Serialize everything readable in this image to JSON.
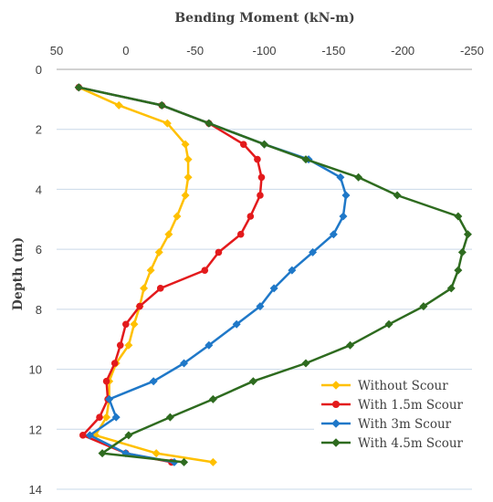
{
  "chart_data": {
    "type": "line",
    "xlabel": "Bending Moment (kN-m)",
    "ylabel": "Depth (m)",
    "xlim": [
      50,
      -250
    ],
    "ylim": [
      0,
      14
    ],
    "x_axis_position": "top",
    "x_ticks": [
      50,
      0,
      -50,
      -100,
      -150,
      -200,
      -250
    ],
    "y_ticks": [
      0,
      2,
      4,
      6,
      8,
      10,
      12,
      14
    ],
    "grid": "horizontal",
    "legend_position": "bottom-right",
    "series": [
      {
        "name": "Without Scour",
        "color": "#FFC000",
        "marker": "diamond",
        "points": [
          {
            "x": 34,
            "y": 0.6
          },
          {
            "x": 5,
            "y": 1.2
          },
          {
            "x": -30,
            "y": 1.8
          },
          {
            "x": -43,
            "y": 2.5
          },
          {
            "x": -45,
            "y": 3.0
          },
          {
            "x": -45,
            "y": 3.6
          },
          {
            "x": -43,
            "y": 4.2
          },
          {
            "x": -37,
            "y": 4.9
          },
          {
            "x": -31,
            "y": 5.5
          },
          {
            "x": -24,
            "y": 6.1
          },
          {
            "x": -18,
            "y": 6.7
          },
          {
            "x": -13,
            "y": 7.3
          },
          {
            "x": -10,
            "y": 7.9
          },
          {
            "x": -6,
            "y": 8.5
          },
          {
            "x": -2,
            "y": 9.2
          },
          {
            "x": 7,
            "y": 9.8
          },
          {
            "x": 12,
            "y": 10.4
          },
          {
            "x": 12,
            "y": 11.0
          },
          {
            "x": 14,
            "y": 11.6
          },
          {
            "x": 22,
            "y": 12.2
          },
          {
            "x": -22,
            "y": 12.8
          },
          {
            "x": -63,
            "y": 13.1
          }
        ]
      },
      {
        "name": "With 1.5m Scour",
        "color": "#E31A1C",
        "marker": "circle",
        "points": [
          {
            "x": 34,
            "y": 0.6
          },
          {
            "x": -26,
            "y": 1.2
          },
          {
            "x": -60,
            "y": 1.8
          },
          {
            "x": -85,
            "y": 2.5
          },
          {
            "x": -95,
            "y": 3.0
          },
          {
            "x": -98,
            "y": 3.6
          },
          {
            "x": -97,
            "y": 4.2
          },
          {
            "x": -90,
            "y": 4.9
          },
          {
            "x": -83,
            "y": 5.5
          },
          {
            "x": -67,
            "y": 6.1
          },
          {
            "x": -57,
            "y": 6.7
          },
          {
            "x": -25,
            "y": 7.3
          },
          {
            "x": -10,
            "y": 7.9
          },
          {
            "x": 0,
            "y": 8.5
          },
          {
            "x": 4,
            "y": 9.2
          },
          {
            "x": 8,
            "y": 9.8
          },
          {
            "x": 14,
            "y": 10.4
          },
          {
            "x": 13,
            "y": 11.0
          },
          {
            "x": 19,
            "y": 11.6
          },
          {
            "x": 31,
            "y": 12.2
          },
          {
            "x": 0,
            "y": 12.8
          },
          {
            "x": -33,
            "y": 13.1
          }
        ]
      },
      {
        "name": "With 3m Scour",
        "color": "#1F78C8",
        "marker": "diamond",
        "points": [
          {
            "x": 34,
            "y": 0.6
          },
          {
            "x": -26,
            "y": 1.2
          },
          {
            "x": -60,
            "y": 1.8
          },
          {
            "x": -100,
            "y": 2.5
          },
          {
            "x": -132,
            "y": 3.0
          },
          {
            "x": -155,
            "y": 3.6
          },
          {
            "x": -159,
            "y": 4.2
          },
          {
            "x": -157,
            "y": 4.9
          },
          {
            "x": -150,
            "y": 5.5
          },
          {
            "x": -135,
            "y": 6.1
          },
          {
            "x": -120,
            "y": 6.7
          },
          {
            "x": -107,
            "y": 7.3
          },
          {
            "x": -97,
            "y": 7.9
          },
          {
            "x": -80,
            "y": 8.5
          },
          {
            "x": -60,
            "y": 9.2
          },
          {
            "x": -42,
            "y": 9.8
          },
          {
            "x": -20,
            "y": 10.4
          },
          {
            "x": 12,
            "y": 11.0
          },
          {
            "x": 7,
            "y": 11.6
          },
          {
            "x": 26,
            "y": 12.2
          },
          {
            "x": 0,
            "y": 12.8
          },
          {
            "x": -35,
            "y": 13.1
          }
        ]
      },
      {
        "name": "With 4.5m Scour",
        "color": "#2E6B1F",
        "marker": "diamond",
        "points": [
          {
            "x": 34,
            "y": 0.6
          },
          {
            "x": -26,
            "y": 1.2
          },
          {
            "x": -60,
            "y": 1.8
          },
          {
            "x": -100,
            "y": 2.5
          },
          {
            "x": -130,
            "y": 3.0
          },
          {
            "x": -168,
            "y": 3.6
          },
          {
            "x": -196,
            "y": 4.2
          },
          {
            "x": -240,
            "y": 4.9
          },
          {
            "x": -247,
            "y": 5.5
          },
          {
            "x": -243,
            "y": 6.1
          },
          {
            "x": -240,
            "y": 6.7
          },
          {
            "x": -235,
            "y": 7.3
          },
          {
            "x": -215,
            "y": 7.9
          },
          {
            "x": -190,
            "y": 8.5
          },
          {
            "x": -162,
            "y": 9.2
          },
          {
            "x": -130,
            "y": 9.8
          },
          {
            "x": -92,
            "y": 10.4
          },
          {
            "x": -63,
            "y": 11.0
          },
          {
            "x": -32,
            "y": 11.6
          },
          {
            "x": -2,
            "y": 12.2
          },
          {
            "x": 17,
            "y": 12.8
          },
          {
            "x": -42,
            "y": 13.1
          }
        ]
      }
    ]
  }
}
